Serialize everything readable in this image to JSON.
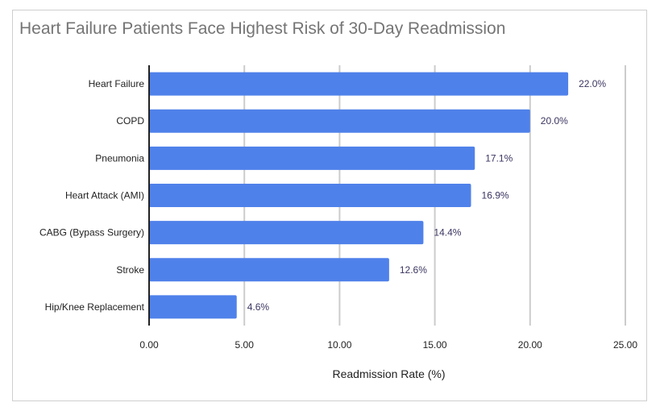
{
  "chart_data": {
    "type": "bar",
    "orientation": "horizontal",
    "title": "Heart Failure Patients Face Highest Risk of 30-Day Readmission",
    "xlabel": "Readmission Rate (%)",
    "ylabel": "",
    "categories": [
      "Heart Failure",
      "COPD",
      "Pneumonia",
      "Heart Attack (AMI)",
      "CABG (Bypass Surgery)",
      "Stroke",
      "Hip/Knee Replacement"
    ],
    "values": [
      22.0,
      20.0,
      17.1,
      16.9,
      14.4,
      12.6,
      4.6
    ],
    "data_labels": [
      "22.0%",
      "20.0%",
      "17.1%",
      "16.9%",
      "14.4%",
      "12.6%",
      "4.6%"
    ],
    "xlim": [
      0,
      25
    ],
    "x_ticks": [
      0,
      5,
      10,
      15,
      20,
      25
    ],
    "x_tick_labels": [
      "0.00",
      "5.00",
      "10.00",
      "15.00",
      "20.00",
      "25.00"
    ],
    "grid": true,
    "legend": "none",
    "bar_color": "#4f81ea",
    "grid_color": "#cccccc"
  }
}
